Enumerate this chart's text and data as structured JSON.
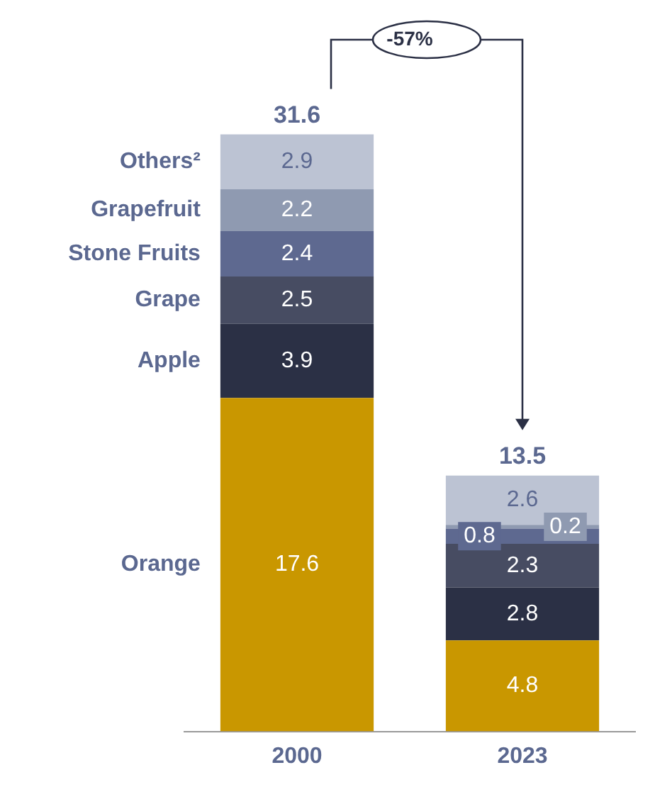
{
  "chart_data": {
    "type": "bar",
    "stacked": true,
    "categories": [
      "2000",
      "2023"
    ],
    "series": [
      {
        "name": "Orange",
        "color": "#c99700",
        "values": [
          17.6,
          4.8
        ]
      },
      {
        "name": "Apple",
        "color": "#2b3045",
        "values": [
          3.9,
          2.8
        ]
      },
      {
        "name": "Grape",
        "color": "#474c62",
        "values": [
          2.5,
          2.3
        ]
      },
      {
        "name": "Stone Fruits",
        "color": "#5e6990",
        "values": [
          2.4,
          0.8
        ]
      },
      {
        "name": "Grapefruit",
        "color": "#8f9ab1",
        "values": [
          2.2,
          0.2
        ]
      },
      {
        "name": "Others²",
        "color": "#bcc3d3",
        "values": [
          2.9,
          2.6
        ]
      }
    ],
    "data_labels": true,
    "totals": [
      "31.6",
      "13.5"
    ],
    "annotations": [
      "-57%"
    ]
  }
}
